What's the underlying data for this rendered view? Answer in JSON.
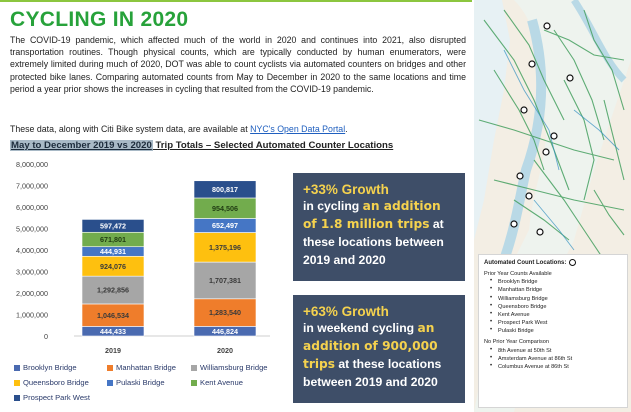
{
  "header": {
    "title": "CYCLING IN 2020",
    "body": "The COVID-19 pandemic, which affected much of the world in 2020 and continues into 2021, also disrupted transportation routines. Though physical counts, which are typically conducted by human enumerators, were extremely limited during much of 2020, DOT was able to count cyclists via automated counters on bridges and other protected bike lanes. Comparing automated counts from May to December in 2020 to the same locations and time period a year prior shows the increases in cycling that resulted from the COVID-19 pandemic.",
    "availability_prefix": "These data, along with Citi Bike system data, are available at ",
    "availability_link": "NYC's Open Data Portal",
    "availability_suffix": "."
  },
  "chart_heading": {
    "highlight": "May to December 2019 vs 2020",
    "rest": " Trip Totals – Selected Automated Counter Locations"
  },
  "chart_data": {
    "type": "bar",
    "stacked": true,
    "categories": [
      "2019",
      "2020"
    ],
    "ylim": [
      0,
      8000000
    ],
    "yticks": [
      "0",
      "1,000,000",
      "2,000,000",
      "3,000,000",
      "4,000,000",
      "5,000,000",
      "6,000,000",
      "7,000,000",
      "8,000,000"
    ],
    "series": [
      {
        "name": "Brooklyn Bridge",
        "color": "#4a6ab0",
        "values": [
          444433,
          446824
        ],
        "labels": [
          "444,433",
          "446,824"
        ]
      },
      {
        "name": "Manhattan Bridge",
        "color": "#ef7d2b",
        "values": [
          1046534,
          1283540
        ],
        "labels": [
          "1,046,534",
          "1,283,540"
        ]
      },
      {
        "name": "Williamsburg Bridge",
        "color": "#a6a6a6",
        "values": [
          1292856,
          1707381
        ],
        "labels": [
          "1,292,856",
          "1,707,381"
        ]
      },
      {
        "name": "Queensboro Bridge",
        "color": "#fec00f",
        "values": [
          924076,
          1375196
        ],
        "labels": [
          "924,076",
          "1,375,196"
        ]
      },
      {
        "name": "Pulaski Bridge",
        "color": "#4576c5",
        "values": [
          444931,
          652497
        ],
        "labels": [
          "444,931",
          "652,497"
        ]
      },
      {
        "name": "Kent Avenue",
        "color": "#72ac4d",
        "values": [
          671801,
          954506
        ],
        "labels": [
          "671,801",
          "954,506"
        ]
      },
      {
        "name": "Prospect Park West",
        "color": "#2a4f8c",
        "values": [
          597472,
          800817
        ],
        "labels": [
          "597,472",
          "800,817"
        ]
      }
    ]
  },
  "callouts": [
    {
      "growth": "+33% Growth",
      "pre": "in cycling ",
      "highlight": "an addition of 1.8 million trips",
      "post": " at these locations between 2019 and 2020"
    },
    {
      "growth": "+63% Growth",
      "pre": "in weekend cycling ",
      "highlight": "an addition of 900,000 trips",
      "post": " at these locations between 2019 and 2020"
    }
  ],
  "map_legend": {
    "title": "Automated Count Locations:",
    "prior_heading": "Prior Year Counts Available",
    "prior_items": [
      "Brooklyn Bridge",
      "Manhattan Bridge",
      "Williamsburg Bridge",
      "Queensboro Bridge",
      "Kent Avenue",
      "Prospect Park West",
      "Pulaski Bridge"
    ],
    "no_prior_heading": "No Prior Year Comparison",
    "no_prior_items": [
      "8th Avenue at 50th St",
      "Amsterdam Avenue at 86th St",
      "Columbus Avenue at 86th St"
    ]
  },
  "colors": {
    "title_green": "#27a23a",
    "callout_bg": "#3e4e68",
    "callout_highlight": "#f5d24e",
    "link": "#1f5fbf"
  }
}
